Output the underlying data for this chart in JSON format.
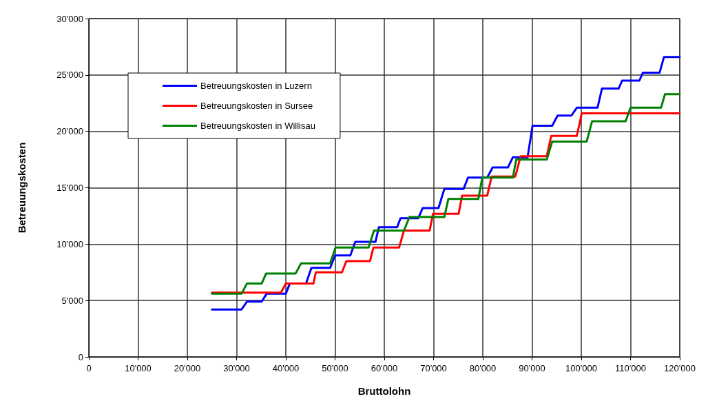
{
  "chart_data": {
    "type": "line",
    "xlabel": "Bruttolohn",
    "ylabel": "Betreuungskosten",
    "xlim": [
      0,
      120000
    ],
    "ylim": [
      0,
      30000
    ],
    "xticks": [
      0,
      {
        "value": 10000,
        "label": "10'000"
      },
      {
        "value": 20000,
        "label": "20'000"
      },
      {
        "value": 30000,
        "label": "30'000"
      },
      {
        "value": 40000,
        "label": "40'000"
      },
      {
        "value": 50000,
        "label": "50'000"
      },
      {
        "value": 60000,
        "label": "60'000"
      },
      {
        "value": 70000,
        "label": "70'000"
      },
      {
        "value": 80000,
        "label": "80'000"
      },
      {
        "value": 90000,
        "label": "90'000"
      },
      {
        "value": 100000,
        "label": "100'000"
      },
      {
        "value": 110000,
        "label": "110'000"
      },
      {
        "value": 120000,
        "label": "120'000"
      }
    ],
    "yticks": [
      0,
      {
        "value": 5000,
        "label": "5'000"
      },
      {
        "value": 10000,
        "label": "10'000"
      },
      {
        "value": 15000,
        "label": "15'000"
      },
      {
        "value": 20000,
        "label": "20'000"
      },
      {
        "value": 25000,
        "label": "25'000"
      },
      {
        "value": 30000,
        "label": "30'000"
      }
    ],
    "grid": true,
    "legend": "top left",
    "marker": "none",
    "line_style": "solid",
    "series": [
      {
        "name": "Betreuungskosten in Luzern",
        "color": "#0000ff",
        "x": [
          25000,
          31000,
          32100,
          35100,
          36100,
          40000,
          40800,
          44100,
          45200,
          49000,
          50000,
          53100,
          54100,
          58200,
          58900,
          62600,
          63300,
          66900,
          67800,
          71000,
          72200,
          76100,
          77000,
          80900,
          82000,
          85100,
          86100,
          89100,
          90100,
          94100,
          95200,
          98000,
          99100,
          103300,
          104200,
          107600,
          108300,
          111800,
          112500,
          115900,
          116800,
          120000
        ],
        "values": [
          4200,
          4200,
          4900,
          4900,
          5600,
          5600,
          6500,
          6500,
          7900,
          7900,
          9000,
          9000,
          10200,
          10200,
          11500,
          11500,
          12300,
          12300,
          13200,
          13200,
          14900,
          14900,
          15900,
          15900,
          16800,
          16800,
          17700,
          17700,
          20500,
          20500,
          21400,
          21400,
          22100,
          22100,
          23800,
          23800,
          24500,
          24500,
          25200,
          25200,
          26600,
          26600
        ]
      },
      {
        "name": "Betreuungskosten in Sursee",
        "color": "#ff0000",
        "x": [
          25000,
          39000,
          40000,
          45600,
          46100,
          51400,
          52300,
          57100,
          57800,
          63000,
          64000,
          69200,
          69900,
          75100,
          75800,
          80900,
          81800,
          86600,
          87700,
          93000,
          93900,
          99100,
          100100,
          120000
        ],
        "values": [
          5700,
          5700,
          6500,
          6500,
          7500,
          7500,
          8500,
          8500,
          9700,
          9700,
          11200,
          11200,
          12700,
          12700,
          14300,
          14300,
          16000,
          16000,
          17800,
          17800,
          19600,
          19600,
          21600,
          21600
        ]
      },
      {
        "name": "Betreuungskosten in Willisau",
        "color": "#008000",
        "x": [
          25000,
          31000,
          32100,
          35100,
          36000,
          42000,
          43100,
          49000,
          50100,
          56800,
          57900,
          64000,
          65100,
          72200,
          73000,
          79100,
          79900,
          86100,
          86800,
          93000,
          94100,
          101100,
          102200,
          109000,
          110000,
          116200,
          117000,
          120000
        ],
        "values": [
          5600,
          5600,
          6500,
          6500,
          7400,
          7400,
          8300,
          8300,
          9700,
          9700,
          11200,
          11200,
          12400,
          12400,
          14000,
          14000,
          15900,
          15900,
          17500,
          17500,
          19100,
          19100,
          20900,
          20900,
          22100,
          22100,
          23300,
          23300
        ]
      }
    ]
  }
}
